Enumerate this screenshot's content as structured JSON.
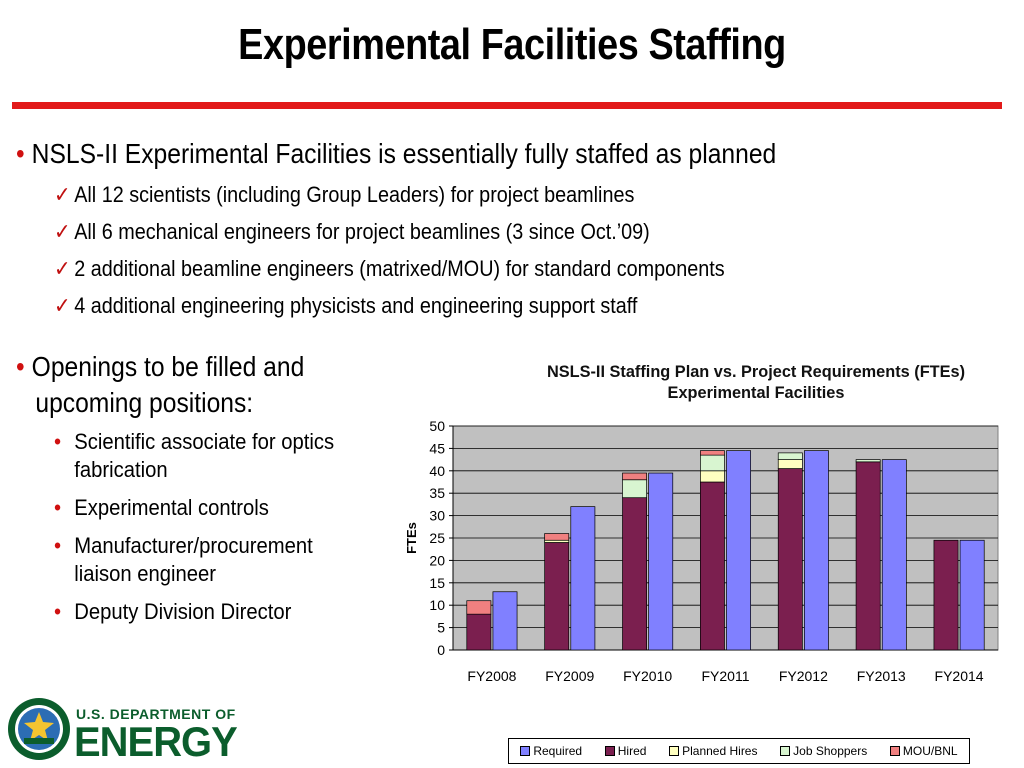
{
  "title": "Experimental Facilities Staffing",
  "bullet1": "NSLS-II Experimental Facilities is essentially fully staffed as planned",
  "checks": [
    "All 12 scientists (including Group Leaders) for project beamlines",
    "All 6 mechanical engineers for project beamlines (3 since Oct.’09)",
    "2 additional beamline engineers (matrixed/MOU) for standard components",
    "4 additional engineering physicists and engineering support staff"
  ],
  "bullet2": [
    "Openings to be filled and",
    "upcoming positions:"
  ],
  "openings": [
    [
      "Scientific associate for optics",
      "fabrication"
    ],
    [
      "Experimental controls"
    ],
    [
      "Manufacturer/procurement",
      "liaison engineer"
    ],
    [
      "Deputy Division Director"
    ]
  ],
  "logo": {
    "line1": "U.S. DEPARTMENT OF",
    "line2": "ENERGY"
  },
  "colors": {
    "accent_red": "#e21a1a",
    "doe_green": "#0b5d2c"
  },
  "chart_data": {
    "type": "bar",
    "title": "NSLS-II Staffing Plan vs. Project Requirements (FTEs)",
    "subtitle": "Experimental Facilities",
    "ylabel": "FTEs",
    "xlabel": "",
    "ylim": [
      0,
      50
    ],
    "yticks": [
      0,
      5,
      10,
      15,
      20,
      25,
      30,
      35,
      40,
      45,
      50
    ],
    "grid": true,
    "legend_position": "bottom",
    "categories": [
      "FY2008",
      "FY2009",
      "FY2010",
      "FY2011",
      "FY2012",
      "FY2013",
      "FY2014"
    ],
    "stacked_series": [
      {
        "name": "Hired",
        "color": "#7b1f4f",
        "values": [
          8,
          24,
          34,
          37.5,
          40.5,
          42,
          24.5
        ]
      },
      {
        "name": "Planned Hires",
        "color": "#ffffc0",
        "values": [
          0,
          0.5,
          0,
          2.5,
          2,
          0,
          0
        ]
      },
      {
        "name": "Job Shoppers",
        "color": "#d8f5d0",
        "values": [
          0,
          0,
          4,
          3.5,
          1.5,
          0.5,
          0
        ]
      },
      {
        "name": "MOU/BNL",
        "color": "#f08080",
        "values": [
          3,
          1.5,
          1.5,
          1,
          0,
          0,
          0
        ]
      }
    ],
    "required": {
      "name": "Required",
      "color": "#8080ff",
      "values": [
        13,
        32,
        39.5,
        44.5,
        44.5,
        42.5,
        24.5
      ]
    },
    "legend": [
      "Required",
      "Hired",
      "Planned Hires",
      "Job Shoppers",
      "MOU/BNL"
    ]
  }
}
